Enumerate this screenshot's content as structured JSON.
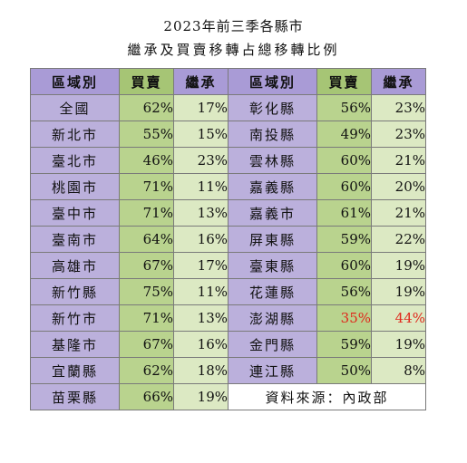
{
  "title_line1": "2023年前三季各縣市",
  "title_line2": "繼承及買賣移轉占總移轉比例",
  "headers": {
    "region": "區域別",
    "buy": "買賣",
    "inherit": "繼承"
  },
  "source_note": "資料來源：內政部",
  "colors": {
    "header_purple": "#a99bd6",
    "header_green": "#a6c575",
    "region_cell": "#bbb0dc",
    "buy_cell": "#b9d38e",
    "inherit_cell": "#dce9c3",
    "highlight_red": "#e0281c"
  },
  "chart_data": {
    "type": "table",
    "title": "2023年前三季各縣市",
    "subtitle": "繼承及買賣移轉占總移轉比例",
    "columns": [
      "區域別",
      "買賣",
      "繼承"
    ],
    "rows": [
      {
        "region": "全國",
        "buy": "62%",
        "inherit": "17%"
      },
      {
        "region": "新北市",
        "buy": "55%",
        "inherit": "15%"
      },
      {
        "region": "臺北市",
        "buy": "46%",
        "inherit": "23%"
      },
      {
        "region": "桃園市",
        "buy": "71%",
        "inherit": "11%"
      },
      {
        "region": "臺中市",
        "buy": "71%",
        "inherit": "13%"
      },
      {
        "region": "臺南市",
        "buy": "64%",
        "inherit": "16%"
      },
      {
        "region": "高雄市",
        "buy": "67%",
        "inherit": "17%"
      },
      {
        "region": "新竹縣",
        "buy": "75%",
        "inherit": "11%"
      },
      {
        "region": "新竹市",
        "buy": "71%",
        "inherit": "13%"
      },
      {
        "region": "基隆市",
        "buy": "67%",
        "inherit": "16%"
      },
      {
        "region": "宜蘭縣",
        "buy": "62%",
        "inherit": "18%"
      },
      {
        "region": "苗栗縣",
        "buy": "66%",
        "inherit": "19%"
      },
      {
        "region": "彰化縣",
        "buy": "56%",
        "inherit": "23%"
      },
      {
        "region": "南投縣",
        "buy": "49%",
        "inherit": "23%"
      },
      {
        "region": "雲林縣",
        "buy": "60%",
        "inherit": "21%"
      },
      {
        "region": "嘉義縣",
        "buy": "60%",
        "inherit": "20%"
      },
      {
        "region": "嘉義市",
        "buy": "61%",
        "inherit": "21%"
      },
      {
        "region": "屏東縣",
        "buy": "59%",
        "inherit": "22%"
      },
      {
        "region": "臺東縣",
        "buy": "60%",
        "inherit": "19%"
      },
      {
        "region": "花蓮縣",
        "buy": "56%",
        "inherit": "19%"
      },
      {
        "region": "澎湖縣",
        "buy": "35%",
        "inherit": "44%",
        "highlight": true
      },
      {
        "region": "金門縣",
        "buy": "59%",
        "inherit": "19%"
      },
      {
        "region": "連江縣",
        "buy": "50%",
        "inherit": "8%"
      }
    ]
  }
}
